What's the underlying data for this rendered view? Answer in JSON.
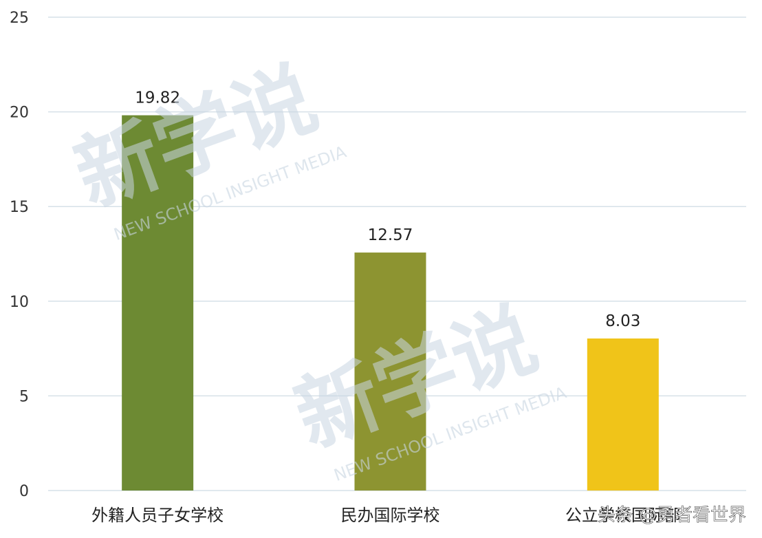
{
  "chart_data": {
    "type": "bar",
    "categories": [
      "外籍人员子女学校",
      "民办国际学校",
      "公立学校国际部"
    ],
    "values": [
      19.82,
      12.57,
      8.03
    ],
    "value_labels": [
      "19.82",
      "12.57",
      "8.03"
    ],
    "colors": [
      "#6d8a33",
      "#8d9431",
      "#f0c419"
    ],
    "ylim": [
      0,
      25
    ],
    "yticks": [
      0,
      5,
      10,
      15,
      20,
      25
    ],
    "grid": true,
    "title": "",
    "xlabel": "",
    "ylabel": ""
  },
  "watermark": {
    "main": "新学说",
    "sub": "NEW SCHOOL INSIGHT MEDIA"
  },
  "credit": "头条 @勇者看世界"
}
